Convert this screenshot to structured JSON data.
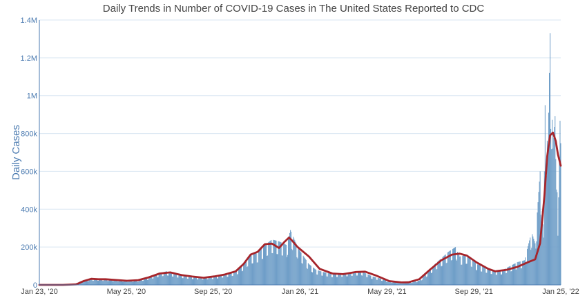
{
  "chart_data": {
    "type": "bar",
    "title": "Daily Trends in Number of COVID-19 Cases in The United States Reported to CDC",
    "xlabel": "",
    "ylabel": "Daily Cases",
    "x_tick_labels": [
      "Jan 23, '20",
      "May 25, '20",
      "Sep 25, '20",
      "Jan 26, '21",
      "May 29, '21",
      "Sep 29, '21",
      "Jan 25, '22"
    ],
    "y_tick_labels": [
      "0",
      "200k",
      "400k",
      "600k",
      "800k",
      "1M",
      "1.2M",
      "1.4M"
    ],
    "ylim": [
      0,
      1400000
    ],
    "grid": true,
    "colors": {
      "bars": "#6f9ec8",
      "average": "#a6252b",
      "axis": "#4a7ab0",
      "grid": "#d9e6f2"
    },
    "series": [
      {
        "type": "bar",
        "values_description": "daily cases, sampled roughly weekly",
        "dates": [
          "2020-01-23",
          "2020-02-23",
          "2020-03-10",
          "2020-03-25",
          "2020-04-10",
          "2020-04-25",
          "2020-05-10",
          "2020-05-25",
          "2020-06-10",
          "2020-06-25",
          "2020-07-10",
          "2020-07-20",
          "2020-08-05",
          "2020-08-20",
          "2020-09-05",
          "2020-09-25",
          "2020-10-10",
          "2020-10-25",
          "2020-11-05",
          "2020-11-15",
          "2020-11-25",
          "2020-12-05",
          "2020-12-15",
          "2020-12-25",
          "2021-01-05",
          "2021-01-10",
          "2021-01-20",
          "2021-01-26",
          "2021-02-05",
          "2021-02-15",
          "2021-02-25",
          "2021-03-10",
          "2021-03-25",
          "2021-04-10",
          "2021-04-20",
          "2021-05-05",
          "2021-05-15",
          "2021-05-29",
          "2021-06-15",
          "2021-06-25",
          "2021-07-10",
          "2021-07-20",
          "2021-08-01",
          "2021-08-10",
          "2021-08-20",
          "2021-08-30",
          "2021-09-05",
          "2021-09-15",
          "2021-09-29",
          "2021-10-10",
          "2021-10-25",
          "2021-11-05",
          "2021-11-15",
          "2021-11-25",
          "2021-12-05",
          "2021-12-15",
          "2021-12-20",
          "2021-12-27",
          "2022-01-01",
          "2022-01-03",
          "2022-01-07",
          "2022-01-10",
          "2022-01-14",
          "2022-01-18",
          "2022-01-21",
          "2022-01-25"
        ],
        "values": [
          0,
          0,
          2000,
          25000,
          32000,
          30000,
          27000,
          23000,
          24000,
          40000,
          62000,
          72000,
          55000,
          46000,
          40000,
          45000,
          58000,
          72000,
          110000,
          160000,
          170000,
          210000,
          240000,
          230000,
          210000,
          290000,
          200000,
          165000,
          110000,
          80000,
          68000,
          58000,
          62000,
          70000,
          72000,
          45000,
          35000,
          18000,
          12000,
          13000,
          22000,
          60000,
          110000,
          140000,
          175000,
          200000,
          150000,
          160000,
          110000,
          95000,
          75000,
          80000,
          100000,
          120000,
          130000,
          280000,
          220000,
          600000,
          250000,
          950000,
          700000,
          1330000,
          720000,
          950000,
          260000,
          1070000
        ]
      },
      {
        "name": "7-day average",
        "type": "line",
        "dates": [
          "2020-01-23",
          "2020-02-25",
          "2020-03-15",
          "2020-03-25",
          "2020-04-05",
          "2020-04-15",
          "2020-04-25",
          "2020-05-25",
          "2020-06-10",
          "2020-06-25",
          "2020-07-10",
          "2020-07-25",
          "2020-08-10",
          "2020-08-25",
          "2020-09-10",
          "2020-09-25",
          "2020-10-10",
          "2020-10-25",
          "2020-11-05",
          "2020-11-15",
          "2020-11-25",
          "2020-12-05",
          "2020-12-15",
          "2020-12-25",
          "2021-01-01",
          "2021-01-08",
          "2021-01-12",
          "2021-01-20",
          "2021-02-05",
          "2021-02-20",
          "2021-03-10",
          "2021-03-25",
          "2021-04-12",
          "2021-04-25",
          "2021-05-10",
          "2021-05-29",
          "2021-06-15",
          "2021-06-25",
          "2021-07-10",
          "2021-07-25",
          "2021-08-10",
          "2021-08-25",
          "2021-09-05",
          "2021-09-15",
          "2021-09-29",
          "2021-10-15",
          "2021-10-25",
          "2021-11-10",
          "2021-11-25",
          "2021-12-10",
          "2021-12-20",
          "2021-12-27",
          "2022-01-02",
          "2022-01-06",
          "2022-01-10",
          "2022-01-14",
          "2022-01-18",
          "2022-01-21",
          "2022-01-25"
        ],
        "values": [
          0,
          0,
          3000,
          20000,
          32000,
          30000,
          30000,
          22000,
          25000,
          40000,
          60000,
          66000,
          52000,
          44000,
          38000,
          45000,
          55000,
          72000,
          110000,
          160000,
          175000,
          215000,
          218000,
          195000,
          225000,
          250000,
          235000,
          200000,
          150000,
          85000,
          60000,
          57000,
          68000,
          70000,
          50000,
          20000,
          13000,
          14000,
          30000,
          80000,
          130000,
          160000,
          165000,
          155000,
          118000,
          85000,
          72000,
          80000,
          95000,
          120000,
          135000,
          220000,
          470000,
          680000,
          790000,
          805000,
          760000,
          690000,
          630000
        ]
      }
    ]
  }
}
